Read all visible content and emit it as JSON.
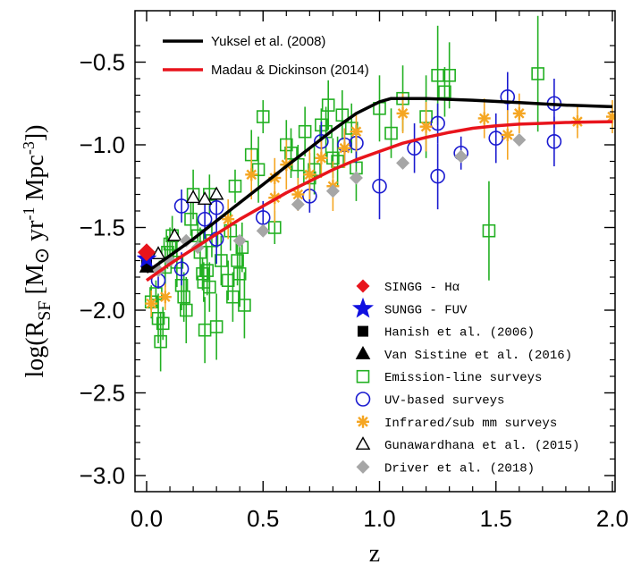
{
  "chart_data": {
    "type": "scatter",
    "xlabel": "z",
    "ylabel_parts": [
      "log(R",
      "SF",
      " [M",
      "⊙",
      " yr",
      "-1",
      " Mpc",
      "-3",
      "])"
    ],
    "xlim": [
      0.0,
      2.0
    ],
    "ylim": [
      -3.1,
      -0.25
    ],
    "xticks": [
      0.0,
      0.5,
      1.0,
      1.5,
      2.0
    ],
    "xtick_labels": [
      "0.0",
      "0.5",
      "1.0",
      "1.5",
      "2.0"
    ],
    "yticks": [
      -0.5,
      -1.0,
      -1.5,
      -2.0,
      -2.5,
      -3.0
    ],
    "ytick_labels": [
      "−0.5",
      "−1.0",
      "−1.5",
      "−2.0",
      "−2.5",
      "−3.0"
    ],
    "colors": {
      "yuksel": "#000000",
      "madau": "#e8141c",
      "singg": "#e8141c",
      "sungg": "#1010e0",
      "emission": "#22b022",
      "uv": "#1a1ad0",
      "ir": "#f5a623",
      "driver": "#a6a6a6",
      "black": "#000000"
    },
    "curves": [
      {
        "name": "Yuksel et al. (2008)",
        "color_key": "yuksel",
        "x": [
          0.0,
          0.1,
          0.2,
          0.3,
          0.4,
          0.5,
          0.6,
          0.7,
          0.8,
          0.9,
          1.0,
          1.05,
          1.1,
          1.2,
          1.4,
          1.6,
          1.8,
          2.0
        ],
        "y": [
          -1.77,
          -1.67,
          -1.57,
          -1.46,
          -1.35,
          -1.24,
          -1.13,
          -1.02,
          -0.91,
          -0.81,
          -0.74,
          -0.72,
          -0.72,
          -0.72,
          -0.73,
          -0.745,
          -0.76,
          -0.77
        ]
      },
      {
        "name": "Madau & Dickinson (2014)",
        "color_key": "madau",
        "x": [
          0.0,
          0.1,
          0.2,
          0.3,
          0.4,
          0.5,
          0.6,
          0.7,
          0.8,
          0.9,
          1.0,
          1.1,
          1.2,
          1.3,
          1.4,
          1.5,
          1.6,
          1.7,
          1.8,
          1.9,
          2.0
        ],
        "y": [
          -1.82,
          -1.72,
          -1.63,
          -1.54,
          -1.45,
          -1.37,
          -1.29,
          -1.22,
          -1.15,
          -1.09,
          -1.04,
          -0.99,
          -0.955,
          -0.925,
          -0.9,
          -0.885,
          -0.875,
          -0.87,
          -0.865,
          -0.862,
          -0.86
        ]
      }
    ],
    "series": [
      {
        "name": "Emission-line surveys",
        "marker": "square-open",
        "color_key": "emission",
        "points": [
          [
            0.02,
            -1.95,
            0.1
          ],
          [
            0.04,
            -1.9,
            0.08
          ],
          [
            0.05,
            -2.05,
            0.15
          ],
          [
            0.06,
            -2.19,
            0.18
          ],
          [
            0.07,
            -2.08,
            0.1
          ],
          [
            0.08,
            -1.74,
            0.12
          ],
          [
            0.09,
            -1.65,
            0.1
          ],
          [
            0.1,
            -1.6,
            0.1
          ],
          [
            0.11,
            -1.55,
            0.12
          ],
          [
            0.13,
            -1.71,
            0.15
          ],
          [
            0.15,
            -1.85,
            0.15
          ],
          [
            0.16,
            -1.92,
            0.15
          ],
          [
            0.17,
            -2.0,
            0.2
          ],
          [
            0.19,
            -1.45,
            0.1
          ],
          [
            0.2,
            -1.3,
            0.15
          ],
          [
            0.22,
            -1.55,
            0.1
          ],
          [
            0.23,
            -1.65,
            0.15
          ],
          [
            0.24,
            -1.78,
            0.1
          ],
          [
            0.245,
            -1.83,
            0.12
          ],
          [
            0.25,
            -2.12,
            0.2
          ],
          [
            0.26,
            -1.76,
            0.15
          ],
          [
            0.27,
            -1.86,
            0.15
          ],
          [
            0.27,
            -1.3,
            0.12
          ],
          [
            0.28,
            -1.58,
            0.1
          ],
          [
            0.3,
            -2.1,
            0.2
          ],
          [
            0.32,
            -1.7,
            0.15
          ],
          [
            0.35,
            -1.82,
            0.12
          ],
          [
            0.36,
            -1.52,
            0.12
          ],
          [
            0.37,
            -1.92,
            0.15
          ],
          [
            0.38,
            -1.25,
            0.1
          ],
          [
            0.39,
            -1.7,
            0.15
          ],
          [
            0.4,
            -1.78,
            0.2
          ],
          [
            0.41,
            -1.62,
            0.15
          ],
          [
            0.42,
            -1.97,
            0.2
          ],
          [
            0.45,
            -1.06,
            0.15
          ],
          [
            0.48,
            -1.15,
            0.2
          ],
          [
            0.5,
            -0.83,
            0.1
          ],
          [
            0.55,
            -1.5,
            0.1
          ],
          [
            0.6,
            -1.0,
            0.15
          ],
          [
            0.62,
            -1.05,
            0.15
          ],
          [
            0.65,
            -1.12,
            0.12
          ],
          [
            0.68,
            -0.92,
            0.15
          ],
          [
            0.7,
            -1.2,
            0.15
          ],
          [
            0.72,
            -1.15,
            0.15
          ],
          [
            0.75,
            -0.88,
            0.1
          ],
          [
            0.77,
            -0.92,
            0.15
          ],
          [
            0.78,
            -0.76,
            0.15
          ],
          [
            0.8,
            -1.08,
            0.12
          ],
          [
            0.82,
            -1.1,
            0.15
          ],
          [
            0.84,
            -0.82,
            0.15
          ],
          [
            0.88,
            -0.9,
            0.15
          ],
          [
            0.9,
            -1.14,
            0.2
          ],
          [
            1.0,
            -0.78,
            0.2
          ],
          [
            1.05,
            -0.93,
            0.15
          ],
          [
            1.1,
            -0.72,
            0.2
          ],
          [
            1.2,
            -0.83,
            0.25
          ],
          [
            1.25,
            -0.58,
            0.3
          ],
          [
            1.28,
            -0.68,
            0.15
          ],
          [
            1.3,
            -0.58,
            0.2
          ],
          [
            1.47,
            -1.52,
            0.3
          ],
          [
            1.68,
            -0.57,
            0.35
          ]
        ]
      },
      {
        "name": "UV-based surveys",
        "marker": "circle-open",
        "color_key": "uv",
        "points": [
          [
            0.05,
            -1.82,
            0.05
          ],
          [
            0.15,
            -1.75,
            0.1
          ],
          [
            0.15,
            -1.37,
            0.1
          ],
          [
            0.25,
            -1.45,
            0.12
          ],
          [
            0.3,
            -1.57,
            0.15
          ],
          [
            0.3,
            -1.38,
            0.1
          ],
          [
            0.5,
            -1.44,
            0.1
          ],
          [
            0.7,
            -1.31,
            0.1
          ],
          [
            0.75,
            -0.98,
            0.12
          ],
          [
            0.85,
            -1.0,
            0.1
          ],
          [
            0.9,
            -0.99,
            0.12
          ],
          [
            1.0,
            -1.25,
            0.2
          ],
          [
            1.15,
            -1.02,
            0.15
          ],
          [
            1.25,
            -1.19,
            0.2
          ],
          [
            1.25,
            -0.87,
            0.12
          ],
          [
            1.35,
            -1.05,
            0.1
          ],
          [
            1.5,
            -0.96,
            0.15
          ],
          [
            1.55,
            -0.71,
            0.15
          ],
          [
            1.75,
            -0.98,
            0.15
          ],
          [
            1.75,
            -0.75,
            0.15
          ]
        ]
      },
      {
        "name": "Infrared/sub mm surveys",
        "marker": "asterisk",
        "color_key": "ir",
        "points": [
          [
            0.02,
            -1.96,
            0.08
          ],
          [
            0.08,
            -1.92,
            0.08
          ],
          [
            0.35,
            -1.45,
            0.12
          ],
          [
            0.45,
            -1.18,
            0.15
          ],
          [
            0.55,
            -1.32,
            0.15
          ],
          [
            0.55,
            -1.2,
            0.12
          ],
          [
            0.6,
            -1.12,
            0.15
          ],
          [
            0.65,
            -1.3,
            0.1
          ],
          [
            0.7,
            -1.18,
            0.15
          ],
          [
            0.75,
            -1.08,
            0.12
          ],
          [
            0.8,
            -1.25,
            0.15
          ],
          [
            0.85,
            -1.02,
            0.12
          ],
          [
            0.9,
            -0.92,
            0.12
          ],
          [
            1.1,
            -0.81,
            0.12
          ],
          [
            1.2,
            -0.89,
            0.15
          ],
          [
            1.45,
            -0.84,
            0.12
          ],
          [
            1.55,
            -0.94,
            0.15
          ],
          [
            1.6,
            -0.81,
            0.12
          ],
          [
            1.85,
            -0.86,
            0.1
          ],
          [
            2.0,
            -0.83,
            0.1
          ]
        ]
      },
      {
        "name": "Gunawardhana et al. (2015)",
        "marker": "triangle-open",
        "color_key": "black",
        "points": [
          [
            0.05,
            -1.66,
            0
          ],
          [
            0.12,
            -1.55,
            0
          ],
          [
            0.2,
            -1.32,
            0
          ],
          [
            0.25,
            -1.33,
            0
          ],
          [
            0.3,
            -1.3,
            0
          ]
        ]
      },
      {
        "name": "Driver et al. (2018)",
        "marker": "diamond-filled",
        "color_key": "driver",
        "points": [
          [
            0.05,
            -1.76,
            0
          ],
          [
            0.1,
            -1.7,
            0
          ],
          [
            0.17,
            -1.58,
            0
          ],
          [
            0.22,
            -1.62,
            0
          ],
          [
            0.4,
            -1.58,
            0
          ],
          [
            0.5,
            -1.52,
            0
          ],
          [
            0.65,
            -1.36,
            0
          ],
          [
            0.8,
            -1.28,
            0
          ],
          [
            0.9,
            -1.2,
            0
          ],
          [
            1.1,
            -1.11,
            0
          ],
          [
            1.35,
            -1.07,
            0
          ],
          [
            1.6,
            -0.97,
            0
          ]
        ]
      },
      {
        "name": "Hanish et al. (2006)",
        "marker": "square-filled",
        "color_key": "black",
        "points": [
          [
            0.0,
            -1.72,
            0
          ]
        ]
      },
      {
        "name": "Van Sistine et al. (2016)",
        "marker": "triangle-filled",
        "color_key": "black",
        "points": [
          [
            0.0,
            -1.74,
            0
          ]
        ]
      },
      {
        "name": "SUNGG - FUV",
        "marker": "star",
        "color_key": "sungg",
        "points": [
          [
            0.0,
            -1.69,
            0
          ]
        ]
      },
      {
        "name": "SINGG - Hα",
        "marker": "diamond-filled-lg",
        "color_key": "singg",
        "points": [
          [
            0.0,
            -1.65,
            0
          ]
        ]
      }
    ],
    "legend_top": [
      {
        "label": "Yuksel et al. (2008)",
        "color_key": "yuksel"
      },
      {
        "label": "Madau & Dickinson (2014)",
        "color_key": "madau"
      }
    ],
    "legend": [
      {
        "label": "SINGG - Hα",
        "marker": "diamond-filled",
        "color_key": "singg"
      },
      {
        "label": "SUNGG - FUV",
        "marker": "star",
        "color_key": "sungg"
      },
      {
        "label": "Hanish et al. (2006)",
        "marker": "square-filled",
        "color_key": "black"
      },
      {
        "label": "Van Sistine et al. (2016)",
        "marker": "triangle-filled",
        "color_key": "black"
      },
      {
        "label": "Emission-line surveys",
        "marker": "square-open",
        "color_key": "emission"
      },
      {
        "label": "UV-based surveys",
        "marker": "circle-open",
        "color_key": "uv"
      },
      {
        "label": "Infrared/sub mm surveys",
        "marker": "asterisk",
        "color_key": "ir"
      },
      {
        "label": "Gunawardhana et al. (2015)",
        "marker": "triangle-open",
        "color_key": "black"
      },
      {
        "label": "Driver et al. (2018)",
        "marker": "diamond-filled",
        "color_key": "driver"
      }
    ]
  }
}
